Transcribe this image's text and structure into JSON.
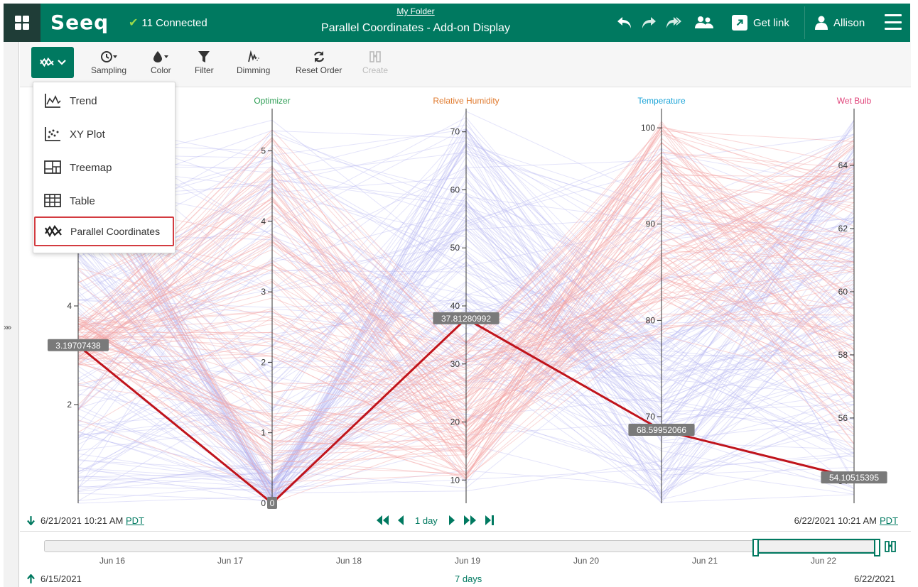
{
  "header": {
    "logo": "Seeq",
    "connected": "11 Connected",
    "folder": "My Folder",
    "title": "Parallel Coordinates - Add-on Display",
    "get_link": "Get link",
    "user": "Allison"
  },
  "toolbar": {
    "tools": [
      {
        "label": "Sampling",
        "icon": "clock-icon"
      },
      {
        "label": "Color",
        "icon": "droplet-icon"
      },
      {
        "label": "Filter",
        "icon": "funnel-icon"
      },
      {
        "label": "Dimming",
        "icon": "dimming-icon"
      },
      {
        "label": "Reset Order",
        "icon": "refresh-icon"
      },
      {
        "label": "Create",
        "icon": "create-icon"
      }
    ]
  },
  "menu": {
    "items": [
      {
        "label": "Trend",
        "icon": "trend-icon"
      },
      {
        "label": "XY Plot",
        "icon": "scatter-icon"
      },
      {
        "label": "Treemap",
        "icon": "treemap-icon"
      },
      {
        "label": "Table",
        "icon": "table-icon"
      },
      {
        "label": "Parallel Coordinates",
        "icon": "parallel-coordinates-icon",
        "selected": true
      }
    ]
  },
  "chart_data": {
    "type": "parallel-coordinates",
    "axes": [
      {
        "name": "",
        "color": "#333333",
        "ticks": [
          "2",
          "4"
        ],
        "min": 0,
        "max": 8
      },
      {
        "name": "Optimizer",
        "color": "#2e9e55",
        "ticks": [
          "0",
          "1",
          "2",
          "3",
          "4",
          "5"
        ],
        "min": 0,
        "max": 5.6
      },
      {
        "name": "Relative Humidity",
        "color": "#e07a2e",
        "ticks": [
          "10",
          "20",
          "30",
          "40",
          "50",
          "60",
          "70"
        ],
        "min": 6,
        "max": 74
      },
      {
        "name": "Temperature",
        "color": "#1ea5d8",
        "ticks": [
          "70",
          "80",
          "90",
          "100"
        ],
        "min": 61,
        "max": 102
      },
      {
        "name": "Wet Bulb",
        "color": "#e0457b",
        "ticks": [
          "54",
          "56",
          "58",
          "60",
          "62",
          "64"
        ],
        "min": 53.3,
        "max": 65.8
      }
    ],
    "highlight_values": [
      "3.19707438",
      "0",
      "37.81280992",
      "68.59952066",
      "54.10515395"
    ],
    "series_colors": {
      "cluster_a": "#f4a6a6",
      "cluster_b": "#b3b3f2",
      "highlight": "#c0141c"
    }
  },
  "time": {
    "range_start": "6/21/2021 10:21 AM",
    "range_end": "6/22/2021 10:21 AM",
    "tz": "PDT",
    "duration": "1 day",
    "overview_ticks": [
      "Jun 16",
      "Jun 17",
      "Jun 18",
      "Jun 19",
      "Jun 20",
      "Jun 21",
      "Jun 22"
    ],
    "overview_start": "6/15/2021",
    "overview_duration": "7 days",
    "overview_end": "6/22/2021"
  }
}
